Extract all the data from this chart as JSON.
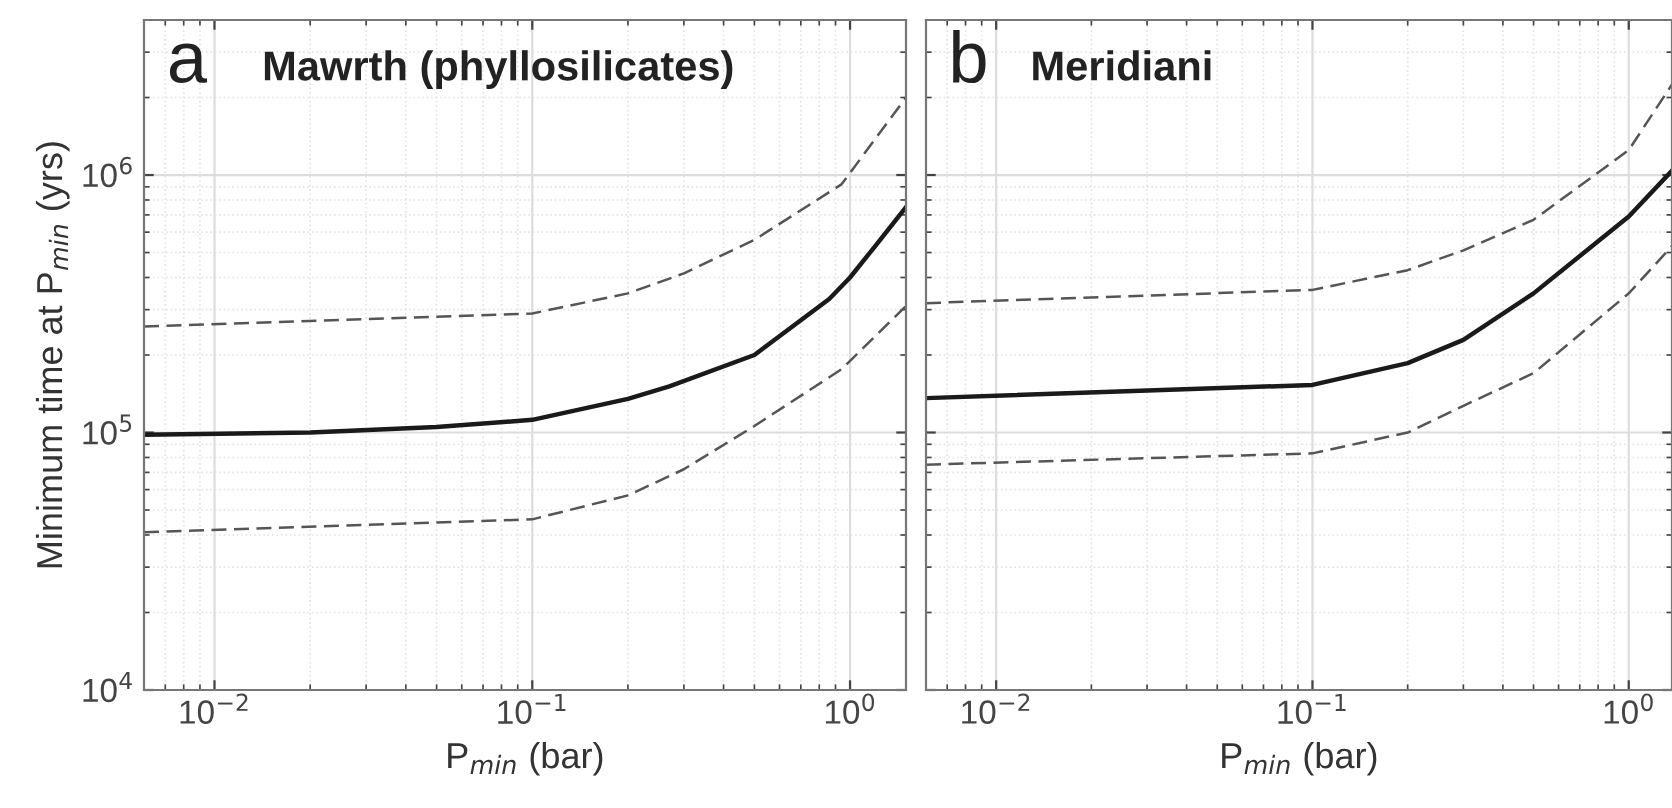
{
  "chart_data": [
    {
      "type": "line",
      "title": "Mawrth (phyllosilicates)",
      "annotations": [
        "a"
      ],
      "xlabel": "P$_{min}$ (bar)",
      "ylabel": "Minimum time at P$_{min}$ (yrs)",
      "log": "xy",
      "grid": true,
      "xlim": [
        0.006,
        1.5
      ],
      "ylim": [
        10000,
        4000000
      ],
      "xticks": [
        {
          "value": 0.01,
          "label": "10$^{−2}$"
        },
        {
          "value": 0.1,
          "label": "10$^{−1}$"
        },
        {
          "value": 1,
          "label": "10$^{0}$"
        }
      ],
      "yticks": [
        {
          "value": 10000,
          "label": "10$^{4}$"
        },
        {
          "value": 100000,
          "label": "10$^{5}$"
        },
        {
          "value": 1000000,
          "label": "10$^{6}$"
        }
      ],
      "series": [
        {
          "color": "#555555",
          "line_style": "dashed",
          "x": [
            0.006,
            0.1,
            0.2,
            0.3,
            0.5,
            0.94,
            1.5
          ],
          "values": [
            258000,
            290000,
            347000,
            415000,
            560000,
            920000,
            2000000
          ]
        },
        {
          "color": "#1a1a1a",
          "line_style": "solid",
          "x": [
            0.006,
            0.02,
            0.05,
            0.1,
            0.2,
            0.27,
            0.5,
            0.86,
            1.0,
            1.2,
            1.5
          ],
          "values": [
            98000,
            100000,
            105000,
            112000,
            135000,
            151000,
            200000,
            330000,
            400000,
            530000,
            750000
          ]
        },
        {
          "color": "#555555",
          "line_style": "dashed",
          "x": [
            0.006,
            0.1,
            0.2,
            0.3,
            0.5,
            0.94,
            1.5
          ],
          "values": [
            41000,
            46000,
            57000,
            72000,
            106000,
            176000,
            310000
          ]
        }
      ]
    },
    {
      "type": "line",
      "title": "Meridiani",
      "annotations": [
        "b"
      ],
      "xlabel": "P$_{min}$ (bar)",
      "log": "xy",
      "grid": true,
      "tick_labels": "x",
      "xlim": [
        0.006,
        1.37
      ],
      "ylim": [
        10000,
        4000000
      ],
      "xticks": [
        {
          "value": 0.01,
          "label": "10$^{−2}$"
        },
        {
          "value": 0.1,
          "label": "10$^{−1}$"
        },
        {
          "value": 1,
          "label": "10$^{0}$"
        }
      ],
      "yticks": [
        {
          "value": 10000,
          "label": null
        },
        {
          "value": 100000,
          "label": null
        },
        {
          "value": 1000000,
          "label": null
        }
      ],
      "series": [
        {
          "color": "#555555",
          "line_style": "dashed",
          "x": [
            0.006,
            0.1,
            0.2,
            0.3,
            0.5,
            1.0,
            1.37
          ],
          "values": [
            318000,
            358000,
            427000,
            510000,
            670000,
            1250000,
            2250000
          ]
        },
        {
          "color": "#1a1a1a",
          "line_style": "solid",
          "x": [
            0.006,
            0.1,
            0.2,
            0.3,
            0.5,
            1.0,
            1.37
          ],
          "values": [
            136000,
            153000,
            186000,
            229000,
            347000,
            690000,
            1040000
          ]
        },
        {
          "color": "#555555",
          "line_style": "dashed",
          "x": [
            0.006,
            0.1,
            0.2,
            0.3,
            0.5,
            1.0,
            1.37
          ],
          "values": [
            75000,
            83000,
            100000,
            127000,
            170000,
            347000,
            530000
          ]
        }
      ]
    }
  ]
}
